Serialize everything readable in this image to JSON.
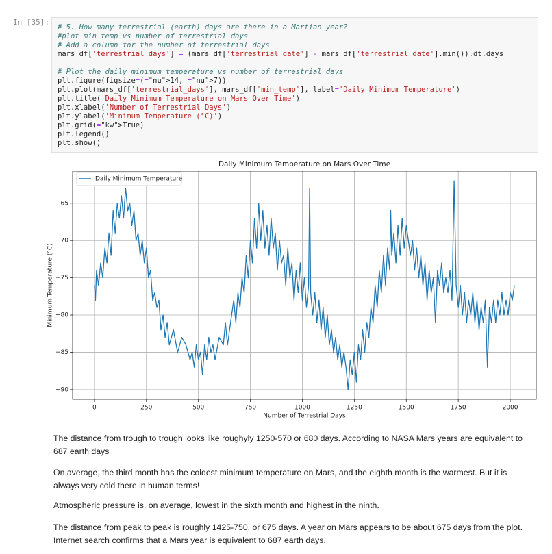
{
  "cell": {
    "prompt": "In [35]:",
    "code": [
      [
        "# 5. How many terrestrial (earth) days are there in a Martian year?",
        "#plot min temp vs number of terrestrial days",
        "# Add a column for the number of terrestrial days",
        "mars_df['terrestrial_days'] = (mars_df['terrestrial_date'] - mars_df['terrestrial_date'].min()).dt.days"
      ],
      [
        "# Plot the daily minimum temperature vs number of terrestrial days",
        "plt.figure(figsize=(14, 7))",
        "plt.plot(mars_df['terrestrial_days'], mars_df['min_temp'], label='Daily Minimum Temperature')",
        "plt.title('Daily Minimum Temperature on Mars Over Time')",
        "plt.xlabel('Number of Terrestrial Days')",
        "plt.ylabel('Minimum Temperature (°C)')",
        "plt.grid(True)",
        "plt.legend()",
        "plt.show()"
      ]
    ]
  },
  "chart_data": {
    "type": "line",
    "title": "Daily Minimum Temperature on Mars Over Time",
    "x_label": "Number of Terrestrial Days",
    "y_label": "Minimum Temperature (°C)",
    "grid": true,
    "legend": "upper left",
    "x": [
      0,
      5,
      10,
      20,
      30,
      40,
      50,
      60,
      70,
      80,
      90,
      100,
      110,
      120,
      130,
      140,
      150,
      160,
      170,
      180,
      190,
      200,
      210,
      220,
      230,
      240,
      250,
      260,
      270,
      280,
      290,
      300,
      310,
      320,
      330,
      340,
      350,
      360,
      380,
      400,
      420,
      440,
      460,
      470,
      480,
      490,
      500,
      510,
      520,
      530,
      540,
      550,
      560,
      570,
      580,
      600,
      620,
      630,
      640,
      650,
      660,
      670,
      680,
      690,
      700,
      710,
      720,
      730,
      740,
      750,
      760,
      770,
      780,
      790,
      800,
      810,
      820,
      830,
      840,
      850,
      860,
      870,
      880,
      890,
      900,
      910,
      920,
      930,
      940,
      950,
      960,
      970,
      980,
      990,
      1000,
      1010,
      1020,
      1030,
      1035,
      1040,
      1050,
      1060,
      1070,
      1080,
      1090,
      1100,
      1110,
      1120,
      1130,
      1140,
      1150,
      1160,
      1170,
      1180,
      1190,
      1200,
      1210,
      1220,
      1230,
      1240,
      1250,
      1260,
      1270,
      1280,
      1290,
      1300,
      1310,
      1320,
      1330,
      1340,
      1350,
      1360,
      1370,
      1380,
      1390,
      1400,
      1410,
      1420,
      1425,
      1430,
      1440,
      1450,
      1460,
      1470,
      1480,
      1490,
      1500,
      1510,
      1520,
      1530,
      1540,
      1550,
      1560,
      1570,
      1580,
      1590,
      1600,
      1610,
      1620,
      1630,
      1640,
      1650,
      1660,
      1670,
      1680,
      1690,
      1700,
      1710,
      1720,
      1730,
      1740,
      1750,
      1760,
      1770,
      1780,
      1790,
      1800,
      1810,
      1820,
      1830,
      1840,
      1850,
      1860,
      1870,
      1880,
      1890,
      1900,
      1910,
      1920,
      1930,
      1940,
      1950,
      1960,
      1970,
      1980,
      1990,
      2000,
      2010,
      2020
    ],
    "series": [
      {
        "name": "Daily Minimum Temperature",
        "color": "#1f77b4",
        "values": [
          -76,
          -78,
          -74,
          -76,
          -73,
          -75,
          -71,
          -73,
          -69,
          -72,
          -66,
          -69,
          -65,
          -67,
          -64,
          -67,
          -63,
          -66,
          -65,
          -68,
          -66,
          -70,
          -69,
          -72,
          -70,
          -73,
          -71,
          -75,
          -74,
          -78,
          -77,
          -79,
          -78,
          -82,
          -80,
          -83,
          -81,
          -84,
          -82,
          -85,
          -83,
          -84,
          -86,
          -85,
          -87,
          -84,
          -86,
          -85,
          -88,
          -84,
          -86,
          -83,
          -85,
          -84,
          -86,
          -83,
          -84,
          -81,
          -84,
          -82,
          -80,
          -78,
          -81,
          -77,
          -79,
          -75,
          -77,
          -72,
          -75,
          -70,
          -73,
          -67,
          -71,
          -65,
          -70,
          -66,
          -71,
          -68,
          -72,
          -67,
          -71,
          -69,
          -74,
          -70,
          -73,
          -72,
          -76,
          -71,
          -75,
          -73,
          -78,
          -74,
          -77,
          -73,
          -78,
          -75,
          -79,
          -76,
          -63,
          -77,
          -80,
          -77,
          -81,
          -78,
          -82,
          -79,
          -83,
          -80,
          -84,
          -82,
          -85,
          -83,
          -86,
          -84,
          -87,
          -85,
          -87,
          -90,
          -86,
          -88,
          -85,
          -89,
          -84,
          -86,
          -82,
          -85,
          -81,
          -83,
          -79,
          -81,
          -76,
          -79,
          -74,
          -77,
          -72,
          -76,
          -71,
          -74,
          -66,
          -72,
          -69,
          -73,
          -68,
          -72,
          -67,
          -71,
          -68,
          -70,
          -72,
          -70,
          -74,
          -71,
          -75,
          -72,
          -76,
          -73,
          -78,
          -74,
          -77,
          -75,
          -81,
          -74,
          -76,
          -73,
          -77,
          -75,
          -77,
          -74,
          -78,
          -62,
          -76,
          -79,
          -76,
          -80,
          -77,
          -81,
          -78,
          -80,
          -77,
          -81,
          -78,
          -82,
          -79,
          -81,
          -78,
          -87,
          -79,
          -81,
          -78,
          -81,
          -78,
          -80,
          -77,
          -80,
          -78,
          -80,
          -77,
          -78,
          -76
        ]
      }
    ],
    "xlim": [
      -105,
      2125
    ],
    "xticks": [
      0,
      250,
      500,
      750,
      1000,
      1250,
      1500,
      1750,
      2000
    ],
    "ylim": [
      -91.3,
      -60.7
    ],
    "yticks": [
      {
        "value": -90,
        "label": "−90"
      },
      {
        "value": -85,
        "label": "−85"
      },
      {
        "value": -80,
        "label": "−80"
      },
      {
        "value": -75,
        "label": "−75"
      },
      {
        "value": -70,
        "label": "−70"
      },
      {
        "value": -65,
        "label": "−65"
      }
    ]
  },
  "markdown": [
    "The distance from trough to trough looks like roughyly 1250-570 or 680 days. According to NASA Mars years are equivalent to 687 earth days",
    "On average, the third month has the coldest minimum temperature on Mars, and the eighth month is the warmest. But it is always very cold there in human terms!",
    "Atmospheric pressure is, on average, lowest in the sixth month and highest in the ninth.",
    "The distance from peak to peak is roughly 1425-750, or 675 days. A year on Mars appears to be about 675 days from the plot. Internet search confirms that a Mars year is equivalent to 687 earth days."
  ]
}
